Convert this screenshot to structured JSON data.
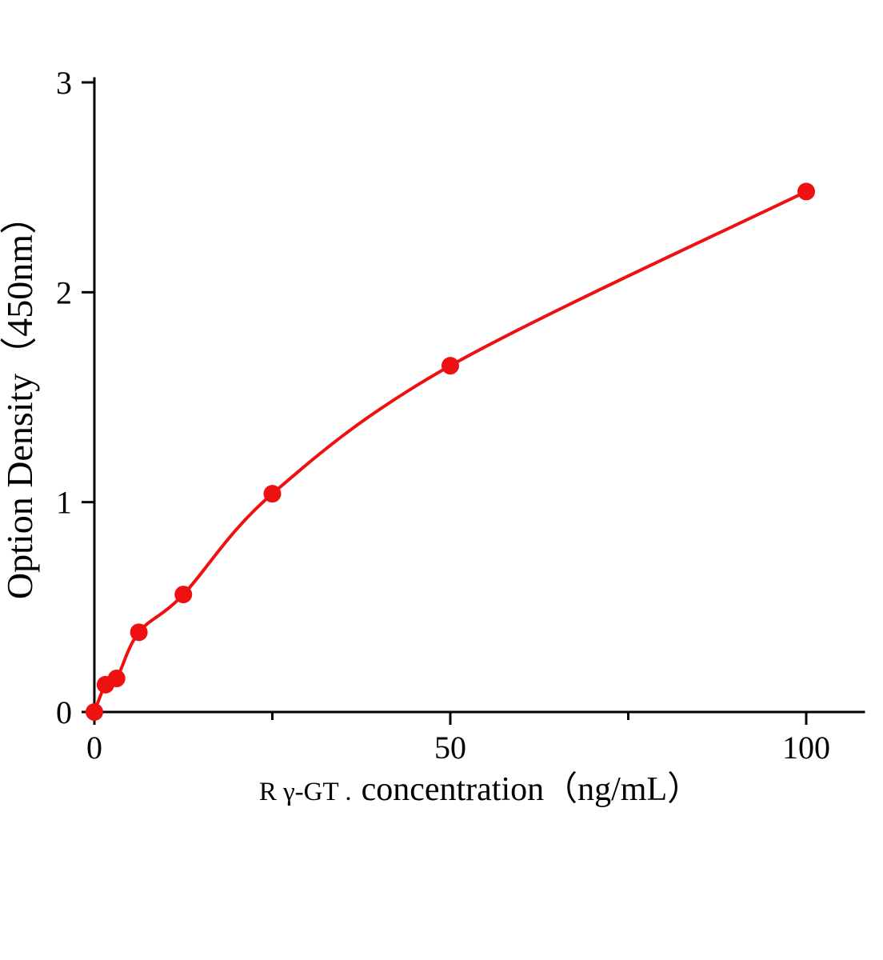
{
  "chart_data": {
    "type": "scatter",
    "title": "",
    "xlabel_prefix": "R γ-GT .",
    "xlabel_main": "concentration（ng/mL）",
    "ylabel": "Option Density（450nm）",
    "x": [
      0,
      1.56,
      3.12,
      6.25,
      12.5,
      25,
      50,
      100
    ],
    "y": [
      0,
      0.13,
      0.16,
      0.38,
      0.56,
      1.04,
      1.65,
      2.48
    ],
    "xlim": [
      0,
      108
    ],
    "ylim": [
      0,
      3
    ],
    "x_major_ticks": [
      0,
      50,
      100
    ],
    "x_minor_ticks": [
      25,
      75
    ],
    "y_major_ticks": [
      0,
      1,
      2,
      3
    ],
    "legend": "none",
    "grid": "off",
    "series_color": "#ee1111",
    "axis_color": "#000000",
    "marker_radius": 11,
    "line_width": 4
  }
}
